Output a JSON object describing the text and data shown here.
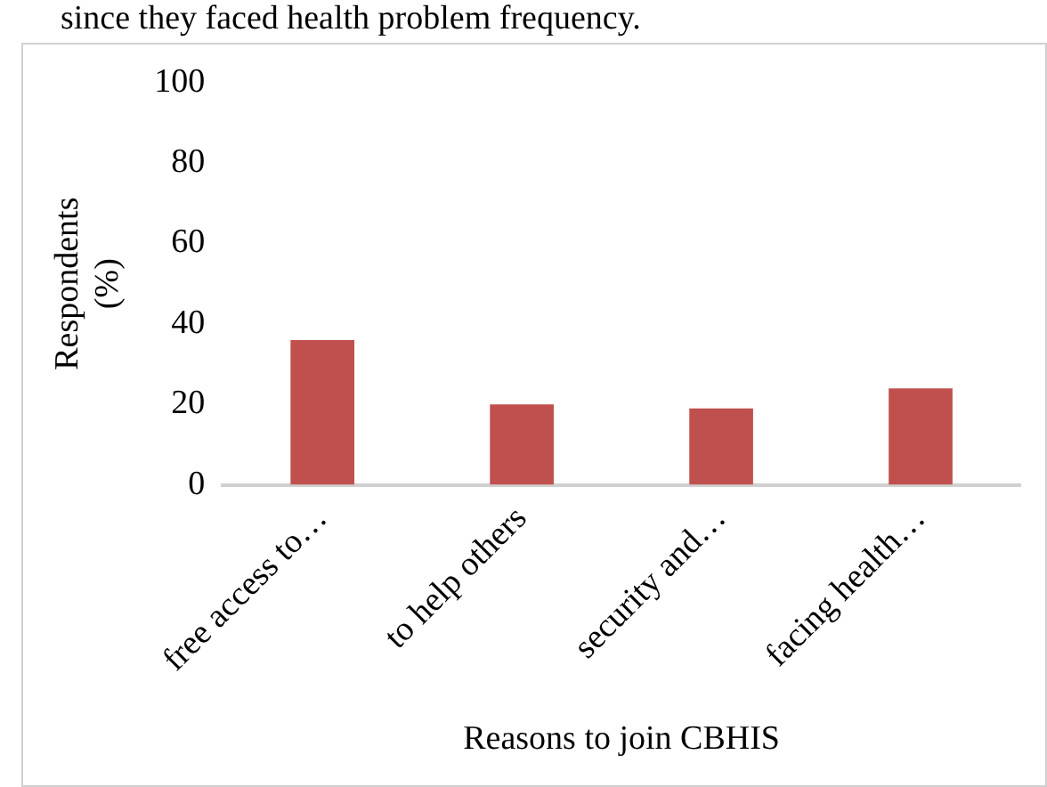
{
  "chart_data": {
    "type": "bar",
    "xlabel": "Reasons to join CBHIS",
    "ylabel": "Respondents (%)",
    "categories": [
      "free access to…",
      "to help others",
      "security and…",
      "facing health…"
    ],
    "values": [
      36,
      20,
      19,
      24
    ],
    "color": "#c0504d",
    "ylim": [
      0,
      100
    ],
    "yticks": [
      0,
      20,
      40,
      60,
      80,
      100
    ],
    "grid": false,
    "legend": false,
    "annotations": [
      "since they faced health problem frequency."
    ]
  }
}
